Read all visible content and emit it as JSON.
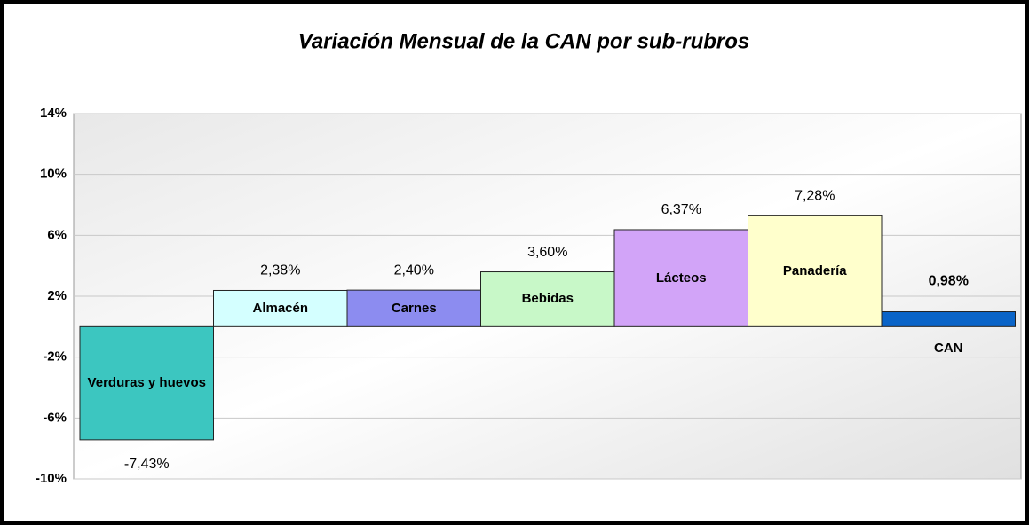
{
  "chart_data": {
    "type": "bar",
    "title": "Variación Mensual de la CAN por sub-rubros",
    "categories": [
      "Verduras y huevos",
      "Almacén",
      "Carnes",
      "Bebidas",
      "Lácteos",
      "Panadería",
      "CAN"
    ],
    "values": [
      -7.43,
      2.38,
      2.4,
      3.6,
      6.37,
      7.28,
      0.98
    ],
    "value_labels": [
      "-7,43%",
      "2,38%",
      "2,40%",
      "3,60%",
      "6,37%",
      "7,28%",
      "0,98%"
    ],
    "colors": [
      "#3cc6c0",
      "#d4ffff",
      "#8c8cf0",
      "#c8f8c8",
      "#d2a4f8",
      "#ffffcc",
      "#0a64c8"
    ],
    "ylim": [
      -10,
      14
    ],
    "yticks": [
      {
        "value": -10,
        "label": "-10%"
      },
      {
        "value": -6,
        "label": "-6%"
      },
      {
        "value": -2,
        "label": "-2%"
      },
      {
        "value": 2,
        "label": "2%"
      },
      {
        "value": 6,
        "label": "6%"
      },
      {
        "value": 10,
        "label": "10%"
      },
      {
        "value": 14,
        "label": "14%"
      }
    ],
    "grid": true
  }
}
